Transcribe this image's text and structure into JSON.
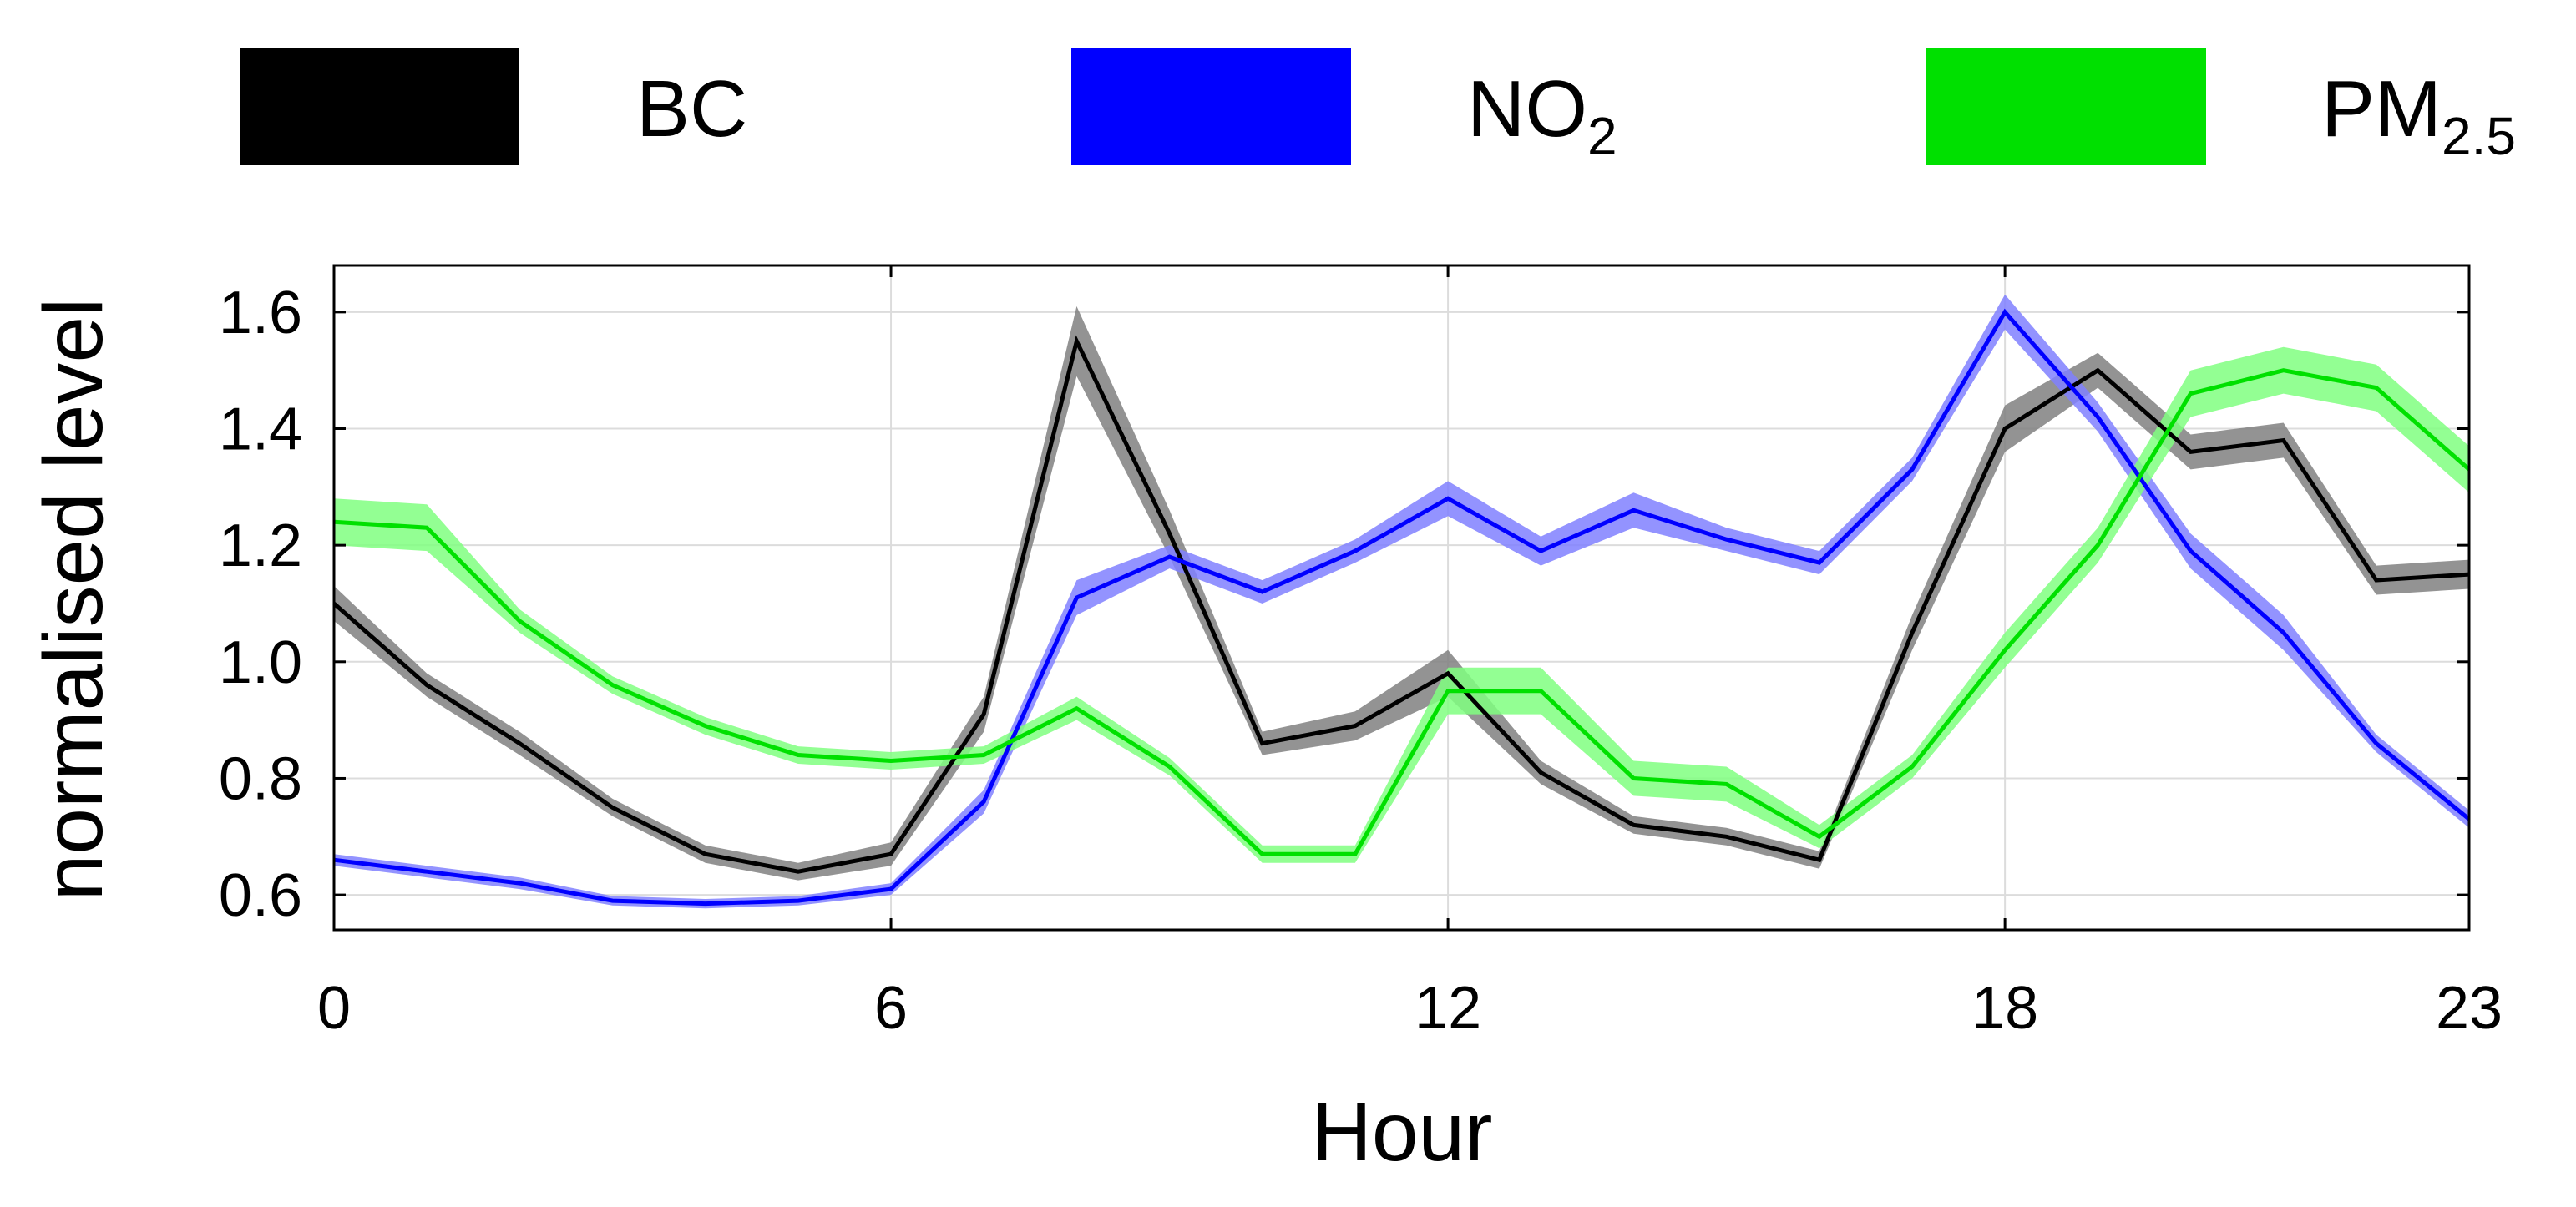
{
  "chart_data": {
    "type": "line",
    "title": "",
    "xlabel": "Hour",
    "ylabel": "normalised level",
    "xlim": [
      0,
      23
    ],
    "ylim": [
      0.54,
      1.68
    ],
    "x_ticks": [
      0,
      6,
      12,
      18,
      23
    ],
    "x_tick_labels": [
      "0",
      "6",
      "12",
      "18",
      "23"
    ],
    "y_ticks": [
      0.6,
      0.8,
      1.0,
      1.2,
      1.4,
      1.6
    ],
    "y_tick_labels": [
      "0.6",
      "0.8",
      "1.0",
      "1.2",
      "1.4",
      "1.6"
    ],
    "grid": true,
    "legend_position": "top",
    "x": [
      0,
      1,
      2,
      3,
      4,
      5,
      6,
      7,
      8,
      9,
      10,
      11,
      12,
      13,
      14,
      15,
      16,
      17,
      18,
      19,
      20,
      21,
      22,
      23
    ],
    "series": [
      {
        "name": "BC",
        "legend_main": "BC",
        "legend_sub": "",
        "color": "#000000",
        "band_color": "#808080",
        "values": [
          1.1,
          0.96,
          0.86,
          0.75,
          0.67,
          0.64,
          0.67,
          0.91,
          1.55,
          1.22,
          0.86,
          0.89,
          0.98,
          0.81,
          0.72,
          0.7,
          0.66,
          1.05,
          1.4,
          1.5,
          1.36,
          1.38,
          1.14,
          1.15
        ],
        "band": [
          0.03,
          0.02,
          0.02,
          0.015,
          0.015,
          0.015,
          0.02,
          0.03,
          0.06,
          0.04,
          0.02,
          0.025,
          0.04,
          0.02,
          0.015,
          0.015,
          0.015,
          0.03,
          0.04,
          0.03,
          0.03,
          0.03,
          0.025,
          0.025
        ]
      },
      {
        "name": "NO2",
        "legend_main": "NO",
        "legend_sub": "2",
        "color": "#0000ff",
        "band_color": "#8080ff",
        "values": [
          0.66,
          0.64,
          0.62,
          0.59,
          0.585,
          0.59,
          0.61,
          0.76,
          1.11,
          1.18,
          1.12,
          1.19,
          1.28,
          1.19,
          1.26,
          1.21,
          1.17,
          1.33,
          1.6,
          1.42,
          1.19,
          1.05,
          0.86,
          0.73
        ],
        "band": [
          0.01,
          0.01,
          0.01,
          0.008,
          0.008,
          0.008,
          0.01,
          0.02,
          0.03,
          0.02,
          0.02,
          0.02,
          0.03,
          0.025,
          0.03,
          0.02,
          0.02,
          0.02,
          0.03,
          0.025,
          0.03,
          0.03,
          0.015,
          0.015
        ]
      },
      {
        "name": "PM2.5",
        "legend_main": "PM",
        "legend_sub": "2.5",
        "color": "#00e000",
        "band_color": "#80ff80",
        "values": [
          1.24,
          1.23,
          1.07,
          0.96,
          0.89,
          0.84,
          0.83,
          0.84,
          0.92,
          0.82,
          0.67,
          0.67,
          0.95,
          0.95,
          0.8,
          0.79,
          0.7,
          0.82,
          1.02,
          1.2,
          1.46,
          1.5,
          1.47,
          1.33
        ],
        "band": [
          0.04,
          0.04,
          0.02,
          0.015,
          0.015,
          0.015,
          0.015,
          0.015,
          0.02,
          0.015,
          0.015,
          0.015,
          0.04,
          0.04,
          0.03,
          0.03,
          0.02,
          0.02,
          0.03,
          0.03,
          0.04,
          0.04,
          0.04,
          0.04
        ]
      }
    ]
  }
}
